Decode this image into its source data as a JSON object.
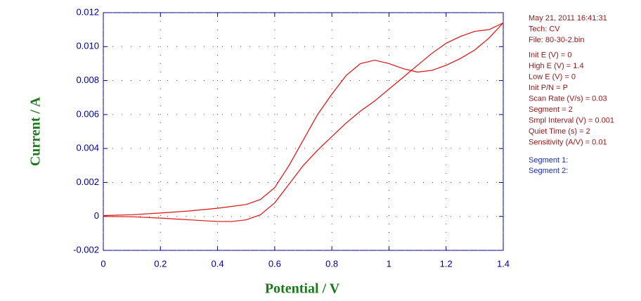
{
  "chart_data": {
    "type": "line",
    "xlabel": "Potential / V",
    "ylabel": "Current / A",
    "label_color": "#1a7a1a",
    "axis_color": "#00008b",
    "xlim": [
      0,
      1.4
    ],
    "xticks": [
      0,
      0.2,
      0.4,
      0.6,
      0.8,
      1.0,
      1.2,
      1.4
    ],
    "ylim": [
      -0.002,
      0.012
    ],
    "yticks": [
      -0.002,
      0,
      0.002,
      0.004,
      0.006,
      0.008,
      {
        "value": 0.01,
        "label": "0.010"
      },
      0.012
    ],
    "grid": true,
    "legend_color": "#1c2fa0",
    "info_color": "#8b1a1a",
    "info": [
      "May 21, 2011   16:41:31",
      "Tech: CV",
      "File: 80-30-2.bin",
      "Init E (V) = 0",
      "High E (V) = 1.4",
      "Low E (V) = 0",
      "Init P/N = P",
      "Scan Rate (V/s) = 0.03",
      "Segment = 2",
      "Smpl Interval (V) = 0.001",
      "Quiet Time (s) = 2",
      "Sensitivity (A/V) = 0.01"
    ],
    "series": [
      {
        "name": "Segment 1:",
        "color": "#dd1111",
        "x": [
          0,
          0.1,
          0.2,
          0.3,
          0.4,
          0.5,
          0.55,
          0.6,
          0.65,
          0.7,
          0.75,
          0.8,
          0.85,
          0.9,
          0.95,
          1.0,
          1.05,
          1.1,
          1.15,
          1.2,
          1.25,
          1.3,
          1.35,
          1.4
        ],
        "values": [
          5e-05,
          0.0001,
          0.0002,
          0.00032,
          0.00048,
          0.0007,
          0.001,
          0.0017,
          0.003,
          0.0045,
          0.006,
          0.0072,
          0.0083,
          0.009,
          0.0092,
          0.009,
          0.0087,
          0.0085,
          0.0086,
          0.0089,
          0.0093,
          0.0098,
          0.0105,
          0.0114
        ]
      },
      {
        "name": "Segment 2:",
        "color": "#dd1111",
        "x": [
          1.4,
          1.35,
          1.3,
          1.25,
          1.2,
          1.15,
          1.1,
          1.05,
          1.0,
          0.95,
          0.9,
          0.85,
          0.8,
          0.75,
          0.7,
          0.65,
          0.6,
          0.55,
          0.5,
          0.45,
          0.4,
          0.3,
          0.2,
          0.1,
          0
        ],
        "values": [
          0.0114,
          0.011,
          0.0109,
          0.0106,
          0.0102,
          0.0096,
          0.0089,
          0.0082,
          0.0075,
          0.0068,
          0.0062,
          0.0055,
          0.0047,
          0.0039,
          0.003,
          0.0019,
          0.0008,
          0.0001,
          -0.0002,
          -0.0003,
          -0.0003,
          -0.0002,
          -0.0001,
          -2e-05,
          0
        ]
      }
    ]
  }
}
